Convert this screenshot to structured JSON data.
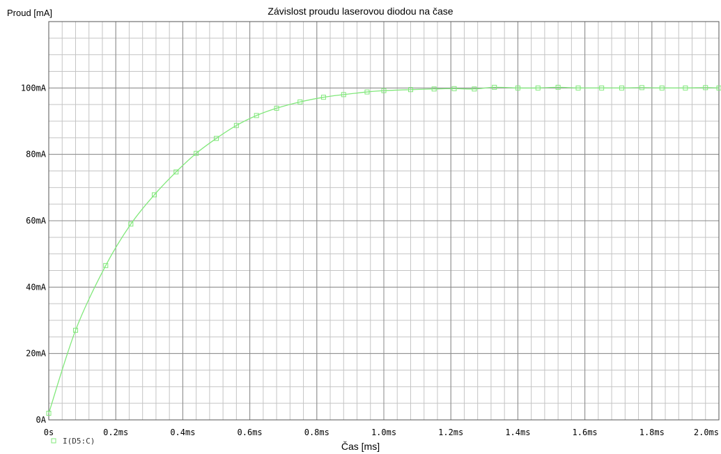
{
  "chart_data": {
    "type": "line",
    "title": "Závislost proudu laserovou diodou na čase",
    "xlabel": "Čas [ms]",
    "ylabel": "Proud [mA]",
    "xlim": [
      0,
      2.0
    ],
    "ylim": [
      0,
      120
    ],
    "grid": true,
    "line_color": "#80e87a",
    "x_tick_labels": [
      "0s",
      "0.2ms",
      "0.4ms",
      "0.6ms",
      "0.8ms",
      "1.0ms",
      "1.2ms",
      "1.4ms",
      "1.6ms",
      "1.8ms",
      "2.0ms"
    ],
    "x_tick_values": [
      0,
      0.2,
      0.4,
      0.6,
      0.8,
      1.0,
      1.2,
      1.4,
      1.6,
      1.8,
      2.0
    ],
    "y_tick_labels": [
      "0A",
      "20mA",
      "40mA",
      "60mA",
      "80mA",
      "100mA"
    ],
    "y_tick_values": [
      0,
      20,
      40,
      60,
      80,
      100
    ],
    "series": [
      {
        "name": "I(D5:C)",
        "x": [
          0,
          0.08,
          0.17,
          0.245,
          0.315,
          0.38,
          0.44,
          0.5,
          0.56,
          0.62,
          0.68,
          0.75,
          0.82,
          0.88,
          0.95,
          1.0,
          1.08,
          1.15,
          1.21,
          1.27,
          1.33,
          1.4,
          1.46,
          1.52,
          1.58,
          1.65,
          1.71,
          1.77,
          1.83,
          1.9,
          1.96,
          2.0
        ],
        "y": [
          2.0,
          27.0,
          46.5,
          59.0,
          67.8,
          74.7,
          80.3,
          84.8,
          88.7,
          91.7,
          93.9,
          95.8,
          97.2,
          98.0,
          98.8,
          99.2,
          99.5,
          99.7,
          99.8,
          99.7,
          100.2,
          100.0,
          100.0,
          100.2,
          100.0,
          100.0,
          100.0,
          100.1,
          100.0,
          100.0,
          100.1,
          100.0
        ]
      }
    ]
  }
}
